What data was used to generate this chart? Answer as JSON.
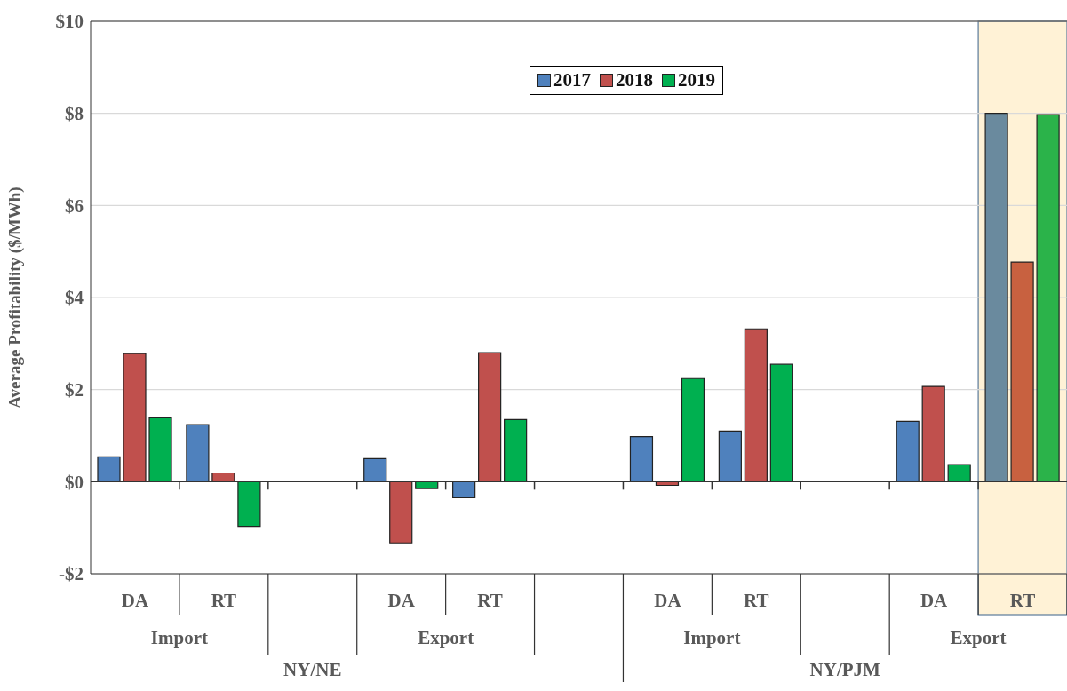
{
  "chart_data": {
    "type": "bar",
    "ylabel": "Average Profitability ($/MWh)",
    "categories": [
      "DA",
      "RT",
      null,
      "DA",
      "RT",
      null,
      "DA",
      "RT",
      null,
      "DA",
      "RT"
    ],
    "series": [
      {
        "name": "2017",
        "color": "#4f81bd",
        "colors": [
          "#4f81bd",
          "#4f81bd",
          "#4f81bd",
          "#4f81bd",
          "#4f81bd",
          "#4f81bd",
          "#4f81bd",
          "#4f81bd",
          "#4f81bd",
          "#4f81bd",
          "#6a8a9e"
        ],
        "values": [
          0.54,
          1.24,
          null,
          0.5,
          -0.35,
          null,
          0.98,
          1.1,
          null,
          1.31,
          8.0
        ]
      },
      {
        "name": "2018",
        "color": "#c0504d",
        "colors": [
          "#c0504d",
          "#c0504d",
          "#c0504d",
          "#c0504d",
          "#c0504d",
          "#c0504d",
          "#c0504d",
          "#c0504d",
          "#c0504d",
          "#c0504d",
          "#c86140"
        ],
        "values": [
          2.78,
          0.19,
          null,
          -1.33,
          2.8,
          null,
          -0.08,
          3.32,
          null,
          2.07,
          4.77
        ]
      },
      {
        "name": "2019",
        "color": "#00b050",
        "colors": [
          "#00b050",
          "#00b050",
          "#00b050",
          "#00b050",
          "#00b050",
          "#00b050",
          "#00b050",
          "#00b050",
          "#00b050",
          "#00b050",
          "#2bb34a"
        ],
        "values": [
          1.39,
          -0.97,
          null,
          -0.15,
          1.35,
          null,
          2.24,
          2.55,
          null,
          0.37,
          7.97
        ]
      }
    ],
    "annotations": [
      "Import",
      "Export",
      "Import",
      "Export",
      "NY/NE",
      "NY/PJM"
    ],
    "ylim": [
      -2,
      10
    ],
    "yticks": [
      {
        "value": -2,
        "label": "-$2"
      },
      {
        "value": 0,
        "label": "$0"
      },
      {
        "value": 2,
        "label": "$2"
      },
      {
        "value": 4,
        "label": "$4"
      },
      {
        "value": 6,
        "label": "$6"
      },
      {
        "value": 8,
        "label": "$8"
      },
      {
        "value": 10,
        "label": "$10"
      }
    ],
    "grid": "y",
    "legend": "top"
  }
}
